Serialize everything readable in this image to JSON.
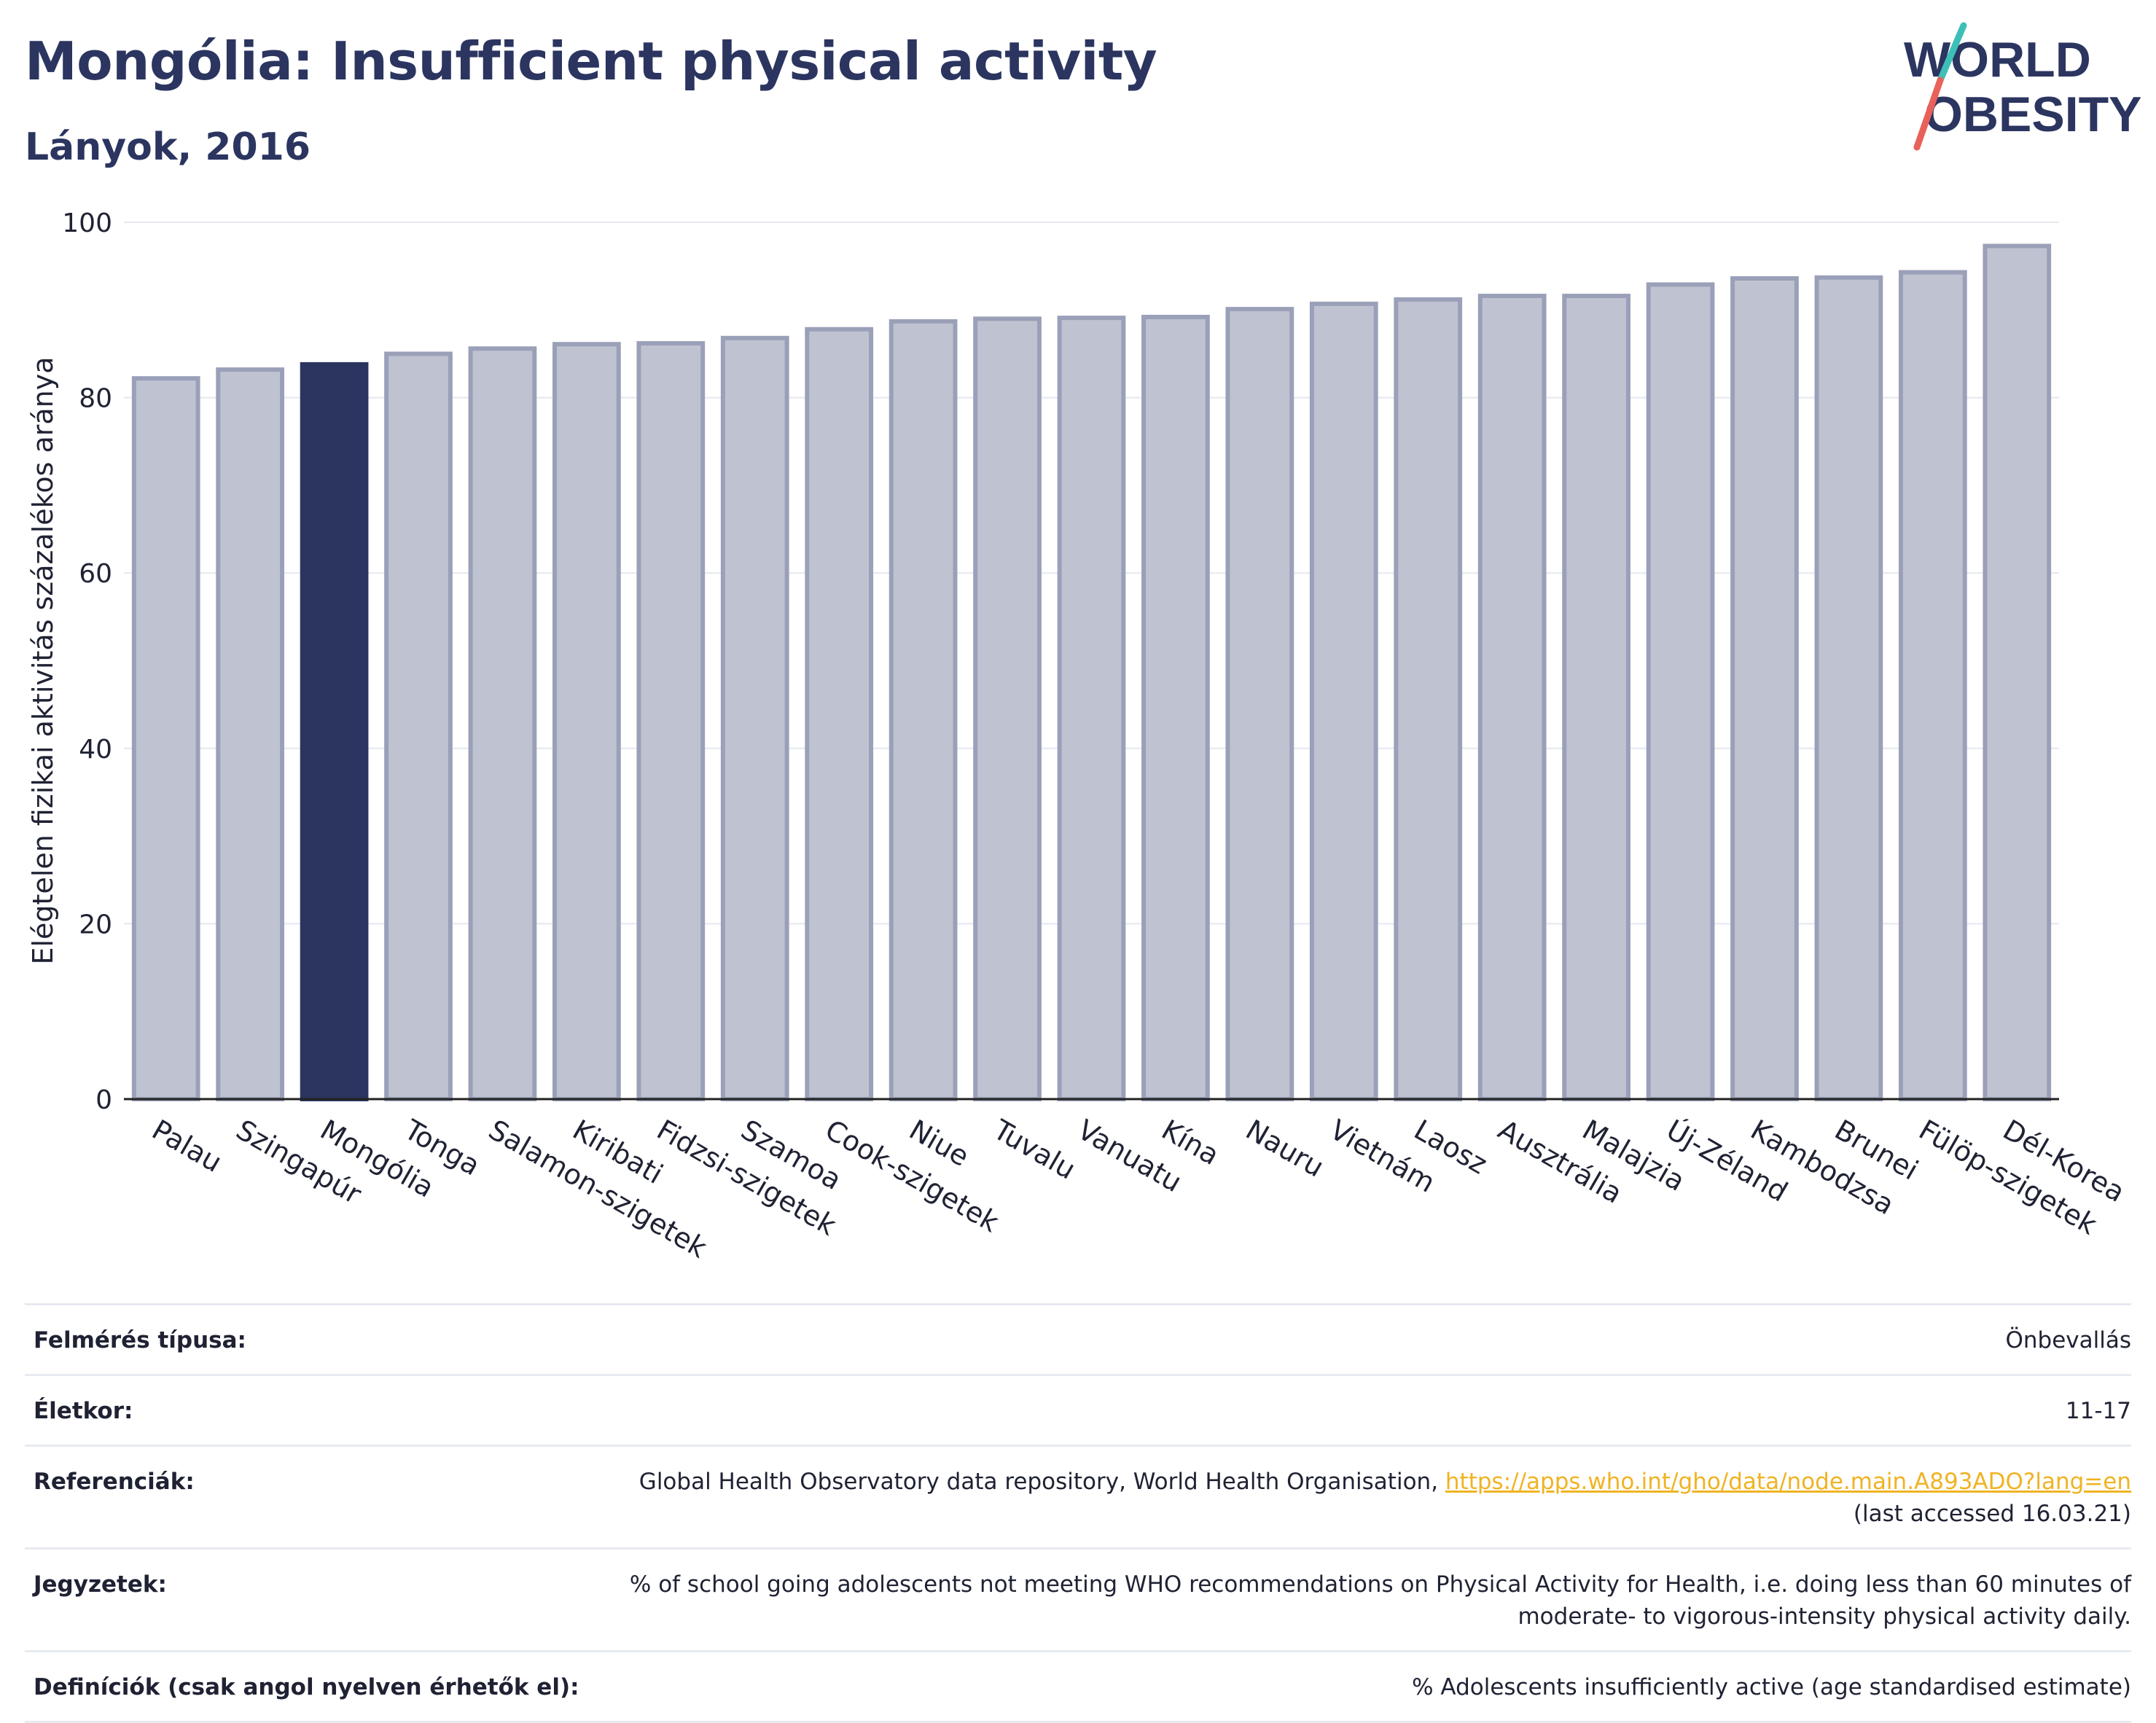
{
  "header": {
    "title": "Mongólia: Insufficient physical activity",
    "subtitle": "Lányok, 2016"
  },
  "logo": {
    "line1": "WORLD",
    "line2": "OBESITY",
    "text_color": "#2b3560",
    "slash_colors": [
      "#3dbfb8",
      "#e8615a"
    ]
  },
  "colors": {
    "highlight_bar": "#2b3560",
    "bar_fill": "#bfc3d1",
    "bar_stroke": "#9aa0b8",
    "link": "#f0b323"
  },
  "chart_data": {
    "type": "bar",
    "categories": [
      "Palau",
      "Szingapúr",
      "Mongólia",
      "Tonga",
      "Salamon-szigetek",
      "Kiribati",
      "Fidzsi-szigetek",
      "Szamoa",
      "Cook-szigetek",
      "Niue",
      "Tuvalu",
      "Vanuatu",
      "Kína",
      "Nauru",
      "Vietnám",
      "Laosz",
      "Ausztrália",
      "Malajzia",
      "Új-Zéland",
      "Kambodzsa",
      "Brunei",
      "Fülöp-szigetek",
      "Dél-Korea"
    ],
    "values": [
      82.2,
      83.2,
      83.8,
      85.0,
      85.6,
      86.1,
      86.2,
      86.8,
      87.8,
      88.7,
      89.0,
      89.1,
      89.2,
      90.1,
      90.7,
      91.2,
      91.6,
      91.6,
      92.9,
      93.6,
      93.7,
      94.3,
      97.3
    ],
    "highlight": "Mongólia",
    "ylabel": "Elégtelen fizikai aktivitás százalékos aránya",
    "xlabel": "",
    "ylim": [
      0,
      100
    ],
    "yticks": [
      0,
      20,
      40,
      60,
      80,
      100
    ],
    "grid": true
  },
  "meta": [
    {
      "label": "Felmérés típusa:",
      "value": "Önbevallás"
    },
    {
      "label": "Életkor:",
      "value": "11-17"
    },
    {
      "label": "Referenciák:",
      "value": "Global Health Observatory data repository, World Health Organisation, ",
      "link": "https://apps.who.int/gho/data/node.main.A893ADO?lang=en",
      "value2": "(last accessed 16.03.21)"
    },
    {
      "label": "Jegyzetek:",
      "value": "% of school going adolescents not meeting WHO recommendations on Physical Activity for Health, i.e. doing less than 60 minutes of moderate- to vigorous-intensity physical activity daily."
    },
    {
      "label": "Definíciók (csak angol nyelven érhetők el):",
      "value": "% Adolescents insufficiently active (age standardised estimate)"
    }
  ]
}
